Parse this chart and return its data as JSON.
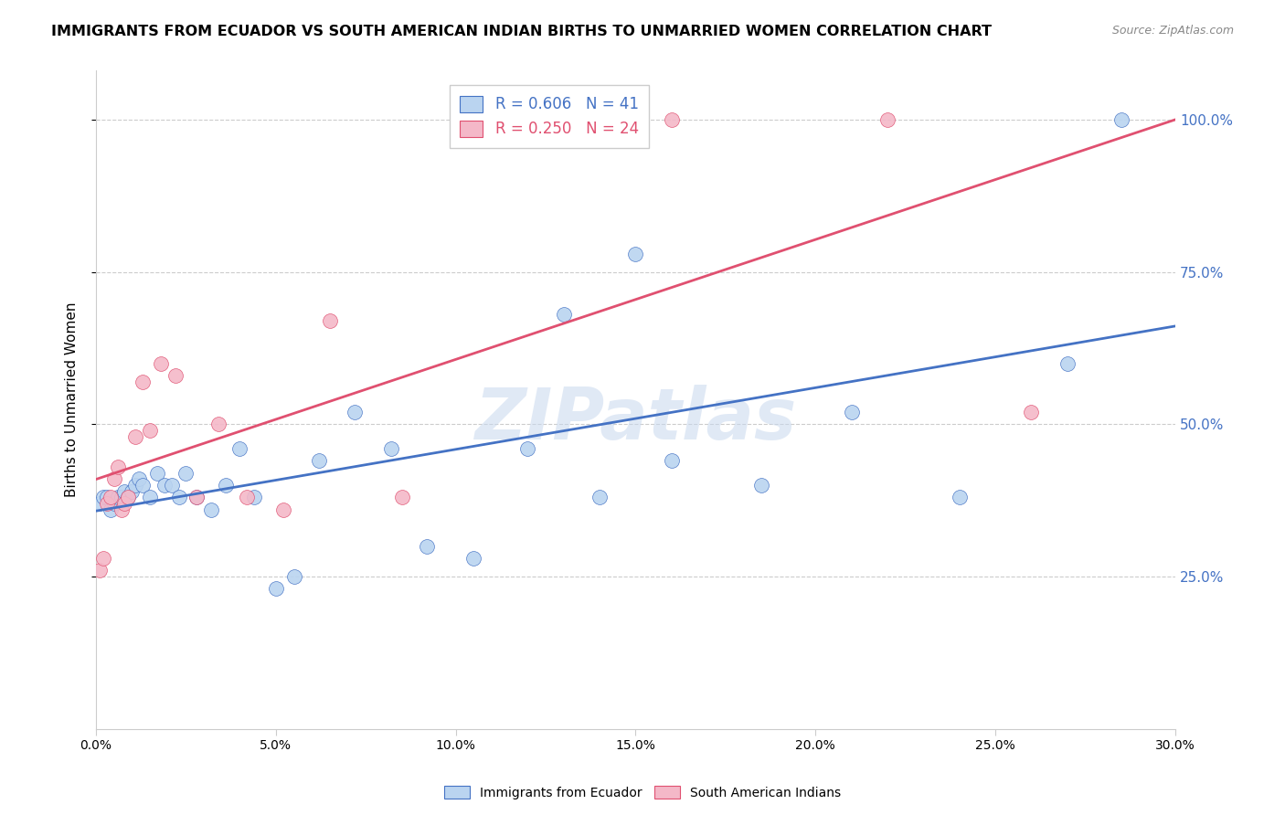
{
  "title": "IMMIGRANTS FROM ECUADOR VS SOUTH AMERICAN INDIAN BIRTHS TO UNMARRIED WOMEN CORRELATION CHART",
  "source": "Source: ZipAtlas.com",
  "ylabel": "Births to Unmarried Women",
  "y_ticks": [
    "25.0%",
    "50.0%",
    "75.0%",
    "100.0%"
  ],
  "x_min": 0.0,
  "x_max": 0.3,
  "y_min": 0.0,
  "y_max": 1.08,
  "legend1_label": "R = 0.606   N = 41",
  "legend2_label": "R = 0.250   N = 24",
  "scatter1_color": "#bad4f0",
  "scatter2_color": "#f4b8c8",
  "line1_color": "#4472c4",
  "line2_color": "#e05070",
  "watermark": "ZIPatlas",
  "blue_dots_x": [
    0.001,
    0.002,
    0.003,
    0.004,
    0.005,
    0.006,
    0.007,
    0.008,
    0.009,
    0.01,
    0.011,
    0.012,
    0.013,
    0.015,
    0.017,
    0.019,
    0.021,
    0.023,
    0.025,
    0.028,
    0.032,
    0.036,
    0.04,
    0.044,
    0.05,
    0.055,
    0.062,
    0.072,
    0.082,
    0.092,
    0.105,
    0.12,
    0.14,
    0.16,
    0.185,
    0.21,
    0.24,
    0.27,
    0.285,
    0.15,
    0.13
  ],
  "blue_dots_y": [
    0.37,
    0.38,
    0.38,
    0.36,
    0.37,
    0.38,
    0.38,
    0.39,
    0.38,
    0.39,
    0.4,
    0.41,
    0.4,
    0.38,
    0.42,
    0.4,
    0.4,
    0.38,
    0.42,
    0.38,
    0.36,
    0.4,
    0.46,
    0.38,
    0.23,
    0.25,
    0.44,
    0.52,
    0.46,
    0.3,
    0.28,
    0.46,
    0.38,
    0.44,
    0.4,
    0.52,
    0.38,
    0.6,
    1.0,
    0.78,
    0.68
  ],
  "pink_dots_x": [
    0.001,
    0.002,
    0.003,
    0.004,
    0.005,
    0.006,
    0.007,
    0.008,
    0.009,
    0.011,
    0.013,
    0.015,
    0.018,
    0.022,
    0.028,
    0.034,
    0.042,
    0.052,
    0.065,
    0.085,
    0.11,
    0.16,
    0.22,
    0.26
  ],
  "pink_dots_y": [
    0.26,
    0.28,
    0.37,
    0.38,
    0.41,
    0.43,
    0.36,
    0.37,
    0.38,
    0.48,
    0.57,
    0.49,
    0.6,
    0.58,
    0.38,
    0.5,
    0.38,
    0.36,
    0.67,
    0.38,
    1.0,
    1.0,
    1.0,
    0.52
  ]
}
